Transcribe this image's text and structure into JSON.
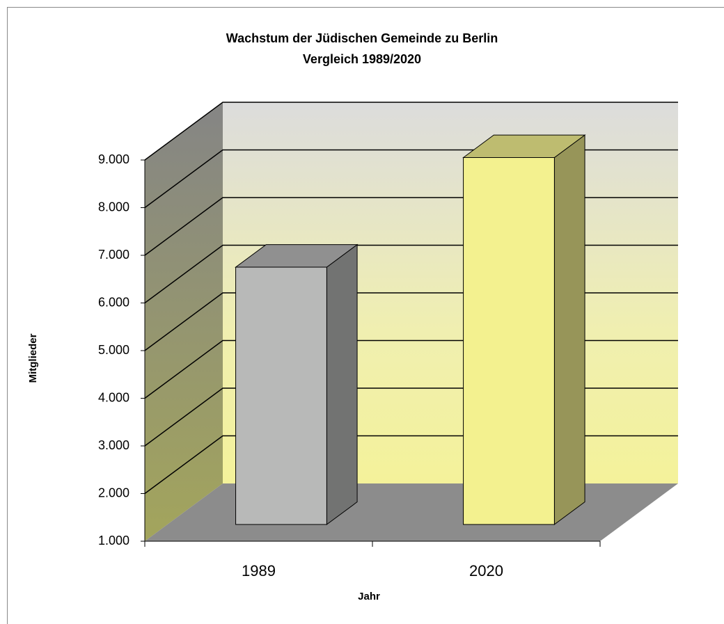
{
  "chart_data": {
    "type": "bar3d",
    "title": [
      "Wachstum der Jüdischen Gemeinde zu Berlin",
      "Vergleich 1989/2020"
    ],
    "y_label": "Mitglieder",
    "x_label": "Jahr",
    "categories": [
      "1989",
      "2020"
    ],
    "values": [
      6400,
      8700
    ],
    "colors": [
      "#b8b9b8",
      "#f3f18f"
    ],
    "ylim": [
      1000,
      9000
    ],
    "yticks": [
      {
        "value": 1000,
        "label": "1.000"
      },
      {
        "value": 2000,
        "label": "2.000"
      },
      {
        "value": 3000,
        "label": "3.000"
      },
      {
        "value": 4000,
        "label": "4.000"
      },
      {
        "value": 5000,
        "label": "5.000"
      },
      {
        "value": 6000,
        "label": "6.000"
      },
      {
        "value": 7000,
        "label": "7.000"
      },
      {
        "value": 8000,
        "label": "8.000"
      },
      {
        "value": 9000,
        "label": "9.000"
      }
    ],
    "grid": true
  }
}
